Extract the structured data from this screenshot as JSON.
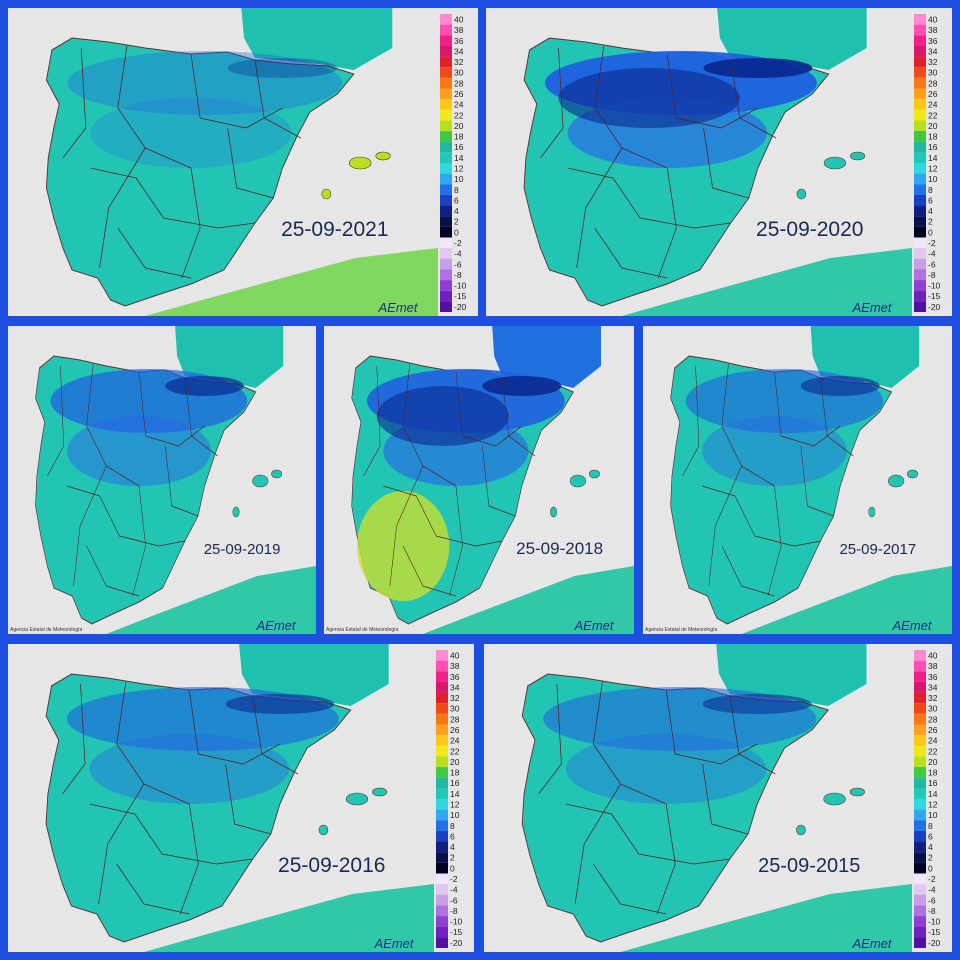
{
  "panels": [
    {
      "date": "25-09-2021",
      "legend": true
    },
    {
      "date": "25-09-2020",
      "legend": true
    },
    {
      "date": "25-09-2019",
      "legend": false
    },
    {
      "date": "25-09-2018",
      "legend": false
    },
    {
      "date": "25-09-2017",
      "legend": false
    },
    {
      "date": "25-09-2016",
      "legend": true
    },
    {
      "date": "25-09-2015",
      "legend": true
    }
  ],
  "legend": {
    "labels": [
      40,
      38,
      36,
      34,
      32,
      30,
      28,
      26,
      24,
      22,
      20,
      18,
      16,
      14,
      12,
      10,
      8,
      6,
      4,
      2,
      0,
      -2,
      -4,
      -6,
      -8,
      -10,
      -15,
      -20
    ],
    "colors": [
      "#ff8ad0",
      "#ff4fb0",
      "#f0208a",
      "#d8186a",
      "#e0202a",
      "#f04a18",
      "#f87818",
      "#fca020",
      "#fcc818",
      "#f0e818",
      "#b8e020",
      "#40c840",
      "#20b8a0",
      "#20c8b8",
      "#30d8e0",
      "#30a8f0",
      "#2070e8",
      "#1840c0",
      "#102080",
      "#081048",
      "#000020",
      "#f0e8f8",
      "#e0c8f0",
      "#c8a0e8",
      "#b070e0",
      "#9040d0",
      "#7020c0",
      "#5010a0"
    ]
  },
  "logo": "AEmet",
  "agency": "Agencia Estatal de Meteorología"
}
